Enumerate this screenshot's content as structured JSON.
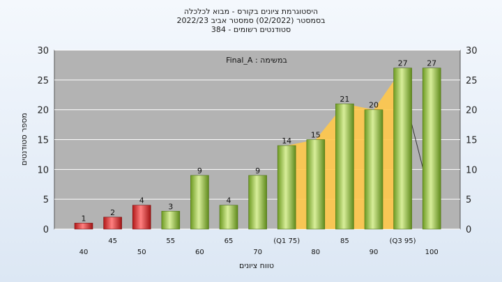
{
  "chart_data": {
    "type": "bar",
    "title_lines": [
      "היסטוגרמת ציונים בקורס - מבוא לכלכלה",
      "בסמסטר  (02/2022)  סמסטר אביב 2022/23",
      "סטודנטים רשומים - 384"
    ],
    "annotation": "במשימה : Final_A",
    "xlabel": "טווח ציונים",
    "ylabel": "מספר סטודנטים",
    "ylim": [
      0,
      30
    ],
    "yticks": [
      0,
      5,
      10,
      15,
      20,
      25,
      30
    ],
    "categories": [
      "40",
      "45",
      "50",
      "55",
      "60",
      "65",
      "70",
      "(Q1 75)",
      "80",
      "85",
      "90",
      "(Q3 95)",
      "100"
    ],
    "values": [
      1,
      2,
      4,
      3,
      9,
      4,
      9,
      14,
      15,
      21,
      20,
      27,
      27
    ],
    "value_labels": [
      "1",
      "2",
      "4",
      "3",
      "9",
      "4",
      "9",
      "14",
      "15",
      "21",
      "20",
      "27",
      "27"
    ],
    "colors": {
      "low": "#d42a2a",
      "high": "#8fba3c",
      "band": "#ffc84a",
      "plot_bg": "#b3b3b3"
    },
    "low_threshold_index": 2,
    "band_start_index": 7,
    "band_end_index": 11,
    "grid": true,
    "legend": "none"
  }
}
